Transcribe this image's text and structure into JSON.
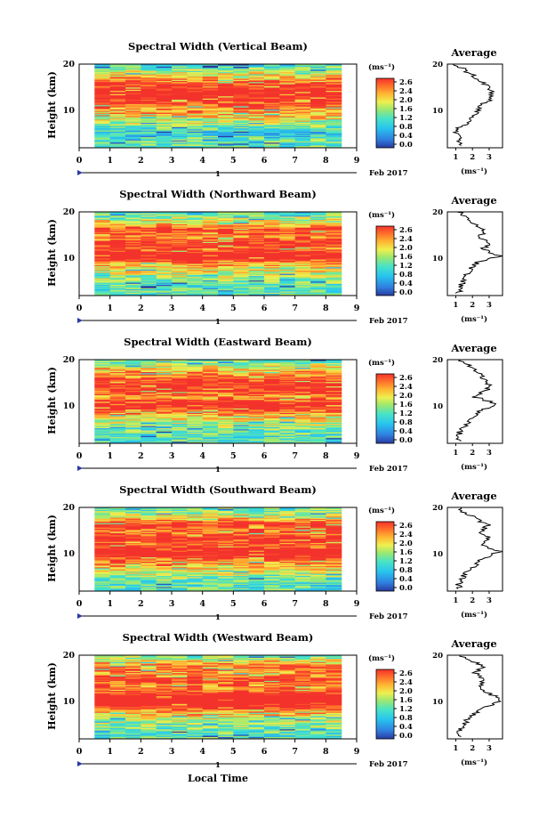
{
  "figure": {
    "x_axis_label": "Local Time",
    "date_label": "Feb 2017",
    "day_marker": "1",
    "x_ticks": [
      "0",
      "1",
      "2",
      "3",
      "4",
      "5",
      "6",
      "7",
      "8",
      "9"
    ],
    "y_axis_label": "Height (km)",
    "y_ticks": [
      "20",
      "10"
    ],
    "colorbar_unit": "(ms⁻¹)",
    "colorbar_ticks": [
      "2.6",
      "2.4",
      "2.0",
      "1.6",
      "1.2",
      "0.8",
      "0.4",
      "0.0"
    ],
    "average_title": "Average",
    "average_xlabel": "(ms⁻¹)"
  },
  "chart_data": [
    {
      "type": "heatmap",
      "title": "Spectral Width (Vertical Beam)",
      "xlabel": "Local Time",
      "ylabel": "Height (km)",
      "xlim": [
        0,
        9
      ],
      "ylim": [
        1,
        20
      ],
      "data_time_range": [
        0.5,
        8.5
      ],
      "colorbar": {
        "label": "(ms⁻¹)",
        "range": [
          0.0,
          2.8
        ]
      },
      "profile": [
        [
          1.3,
          3.0
        ],
        [
          0.9,
          4.5
        ],
        [
          1.6,
          6.5
        ],
        [
          2.0,
          8.0
        ],
        [
          2.4,
          10.0
        ],
        [
          3.0,
          12.0
        ],
        [
          3.2,
          14.0
        ],
        [
          2.6,
          16.0
        ],
        [
          2.0,
          17.5
        ],
        [
          1.4,
          19.0
        ],
        [
          1.0,
          20.0
        ]
      ],
      "average_xticks": [
        "1",
        "2",
        "3"
      ]
    },
    {
      "type": "heatmap",
      "title": "Spectral Width (Northward Beam)",
      "xlabel": "Local Time",
      "ylabel": "Height (km)",
      "xlim": [
        0,
        9
      ],
      "ylim": [
        1,
        20
      ],
      "data_time_range": [
        0.5,
        8.5
      ],
      "colorbar": {
        "label": "(ms⁻¹)",
        "range": [
          0.0,
          2.8
        ]
      },
      "profile": [
        [
          1.2,
          2.5
        ],
        [
          1.4,
          4.0
        ],
        [
          1.8,
          6.5
        ],
        [
          2.3,
          8.5
        ],
        [
          3.6,
          10.0
        ],
        [
          2.6,
          11.5
        ],
        [
          3.0,
          13.0
        ],
        [
          2.4,
          14.5
        ],
        [
          2.8,
          16.0
        ],
        [
          2.0,
          17.5
        ],
        [
          1.5,
          19.0
        ],
        [
          1.2,
          20.0
        ]
      ],
      "average_xticks": [
        "1",
        "2",
        "3"
      ]
    },
    {
      "type": "heatmap",
      "title": "Spectral Width (Eastward Beam)",
      "xlabel": "Local Time",
      "ylabel": "Height (km)",
      "xlim": [
        0,
        9
      ],
      "ylim": [
        1,
        20
      ],
      "data_time_range": [
        0.5,
        8.5
      ],
      "colorbar": {
        "label": "(ms⁻¹)",
        "range": [
          0.0,
          2.8
        ]
      },
      "profile": [
        [
          1.2,
          3.0
        ],
        [
          1.5,
          5.0
        ],
        [
          2.0,
          7.0
        ],
        [
          2.6,
          8.5
        ],
        [
          3.4,
          10.0
        ],
        [
          2.2,
          11.5
        ],
        [
          2.8,
          13.0
        ],
        [
          3.0,
          14.5
        ],
        [
          2.6,
          16.0
        ],
        [
          2.2,
          17.5
        ],
        [
          1.6,
          19.0
        ],
        [
          1.2,
          20.0
        ]
      ],
      "average_xticks": [
        "1",
        "2",
        "3"
      ]
    },
    {
      "type": "heatmap",
      "title": "Spectral Width (Southward Beam)",
      "xlabel": "Local Time",
      "ylabel": "Height (km)",
      "xlim": [
        0,
        9
      ],
      "ylim": [
        1,
        20
      ],
      "data_time_range": [
        0.5,
        8.5
      ],
      "colorbar": {
        "label": "(ms⁻¹)",
        "range": [
          0.0,
          2.8
        ]
      },
      "profile": [
        [
          1.2,
          2.5
        ],
        [
          1.5,
          4.5
        ],
        [
          2.1,
          6.5
        ],
        [
          2.7,
          8.5
        ],
        [
          3.6,
          10.0
        ],
        [
          2.6,
          11.5
        ],
        [
          3.0,
          13.0
        ],
        [
          2.5,
          14.5
        ],
        [
          2.9,
          16.0
        ],
        [
          2.2,
          17.5
        ],
        [
          1.5,
          19.0
        ],
        [
          1.2,
          20.0
        ]
      ],
      "average_xticks": [
        "1",
        "2",
        "3"
      ]
    },
    {
      "type": "heatmap",
      "title": "Spectral Width (Westward Beam)",
      "xlabel": "Local Time",
      "ylabel": "Height (km)",
      "xlim": [
        0,
        9
      ],
      "ylim": [
        1,
        20
      ],
      "data_time_range": [
        0.5,
        8.5
      ],
      "colorbar": {
        "label": "(ms⁻¹)",
        "range": [
          0.0,
          2.8
        ]
      },
      "profile": [
        [
          1.2,
          2.5
        ],
        [
          1.6,
          5.0
        ],
        [
          2.2,
          7.0
        ],
        [
          3.0,
          8.5
        ],
        [
          3.8,
          10.0
        ],
        [
          2.8,
          11.5
        ],
        [
          2.4,
          13.0
        ],
        [
          2.8,
          14.5
        ],
        [
          2.2,
          16.0
        ],
        [
          2.6,
          17.5
        ],
        [
          1.8,
          19.0
        ],
        [
          1.3,
          20.0
        ]
      ],
      "average_xticks": [
        "1",
        "2",
        "3"
      ]
    }
  ]
}
